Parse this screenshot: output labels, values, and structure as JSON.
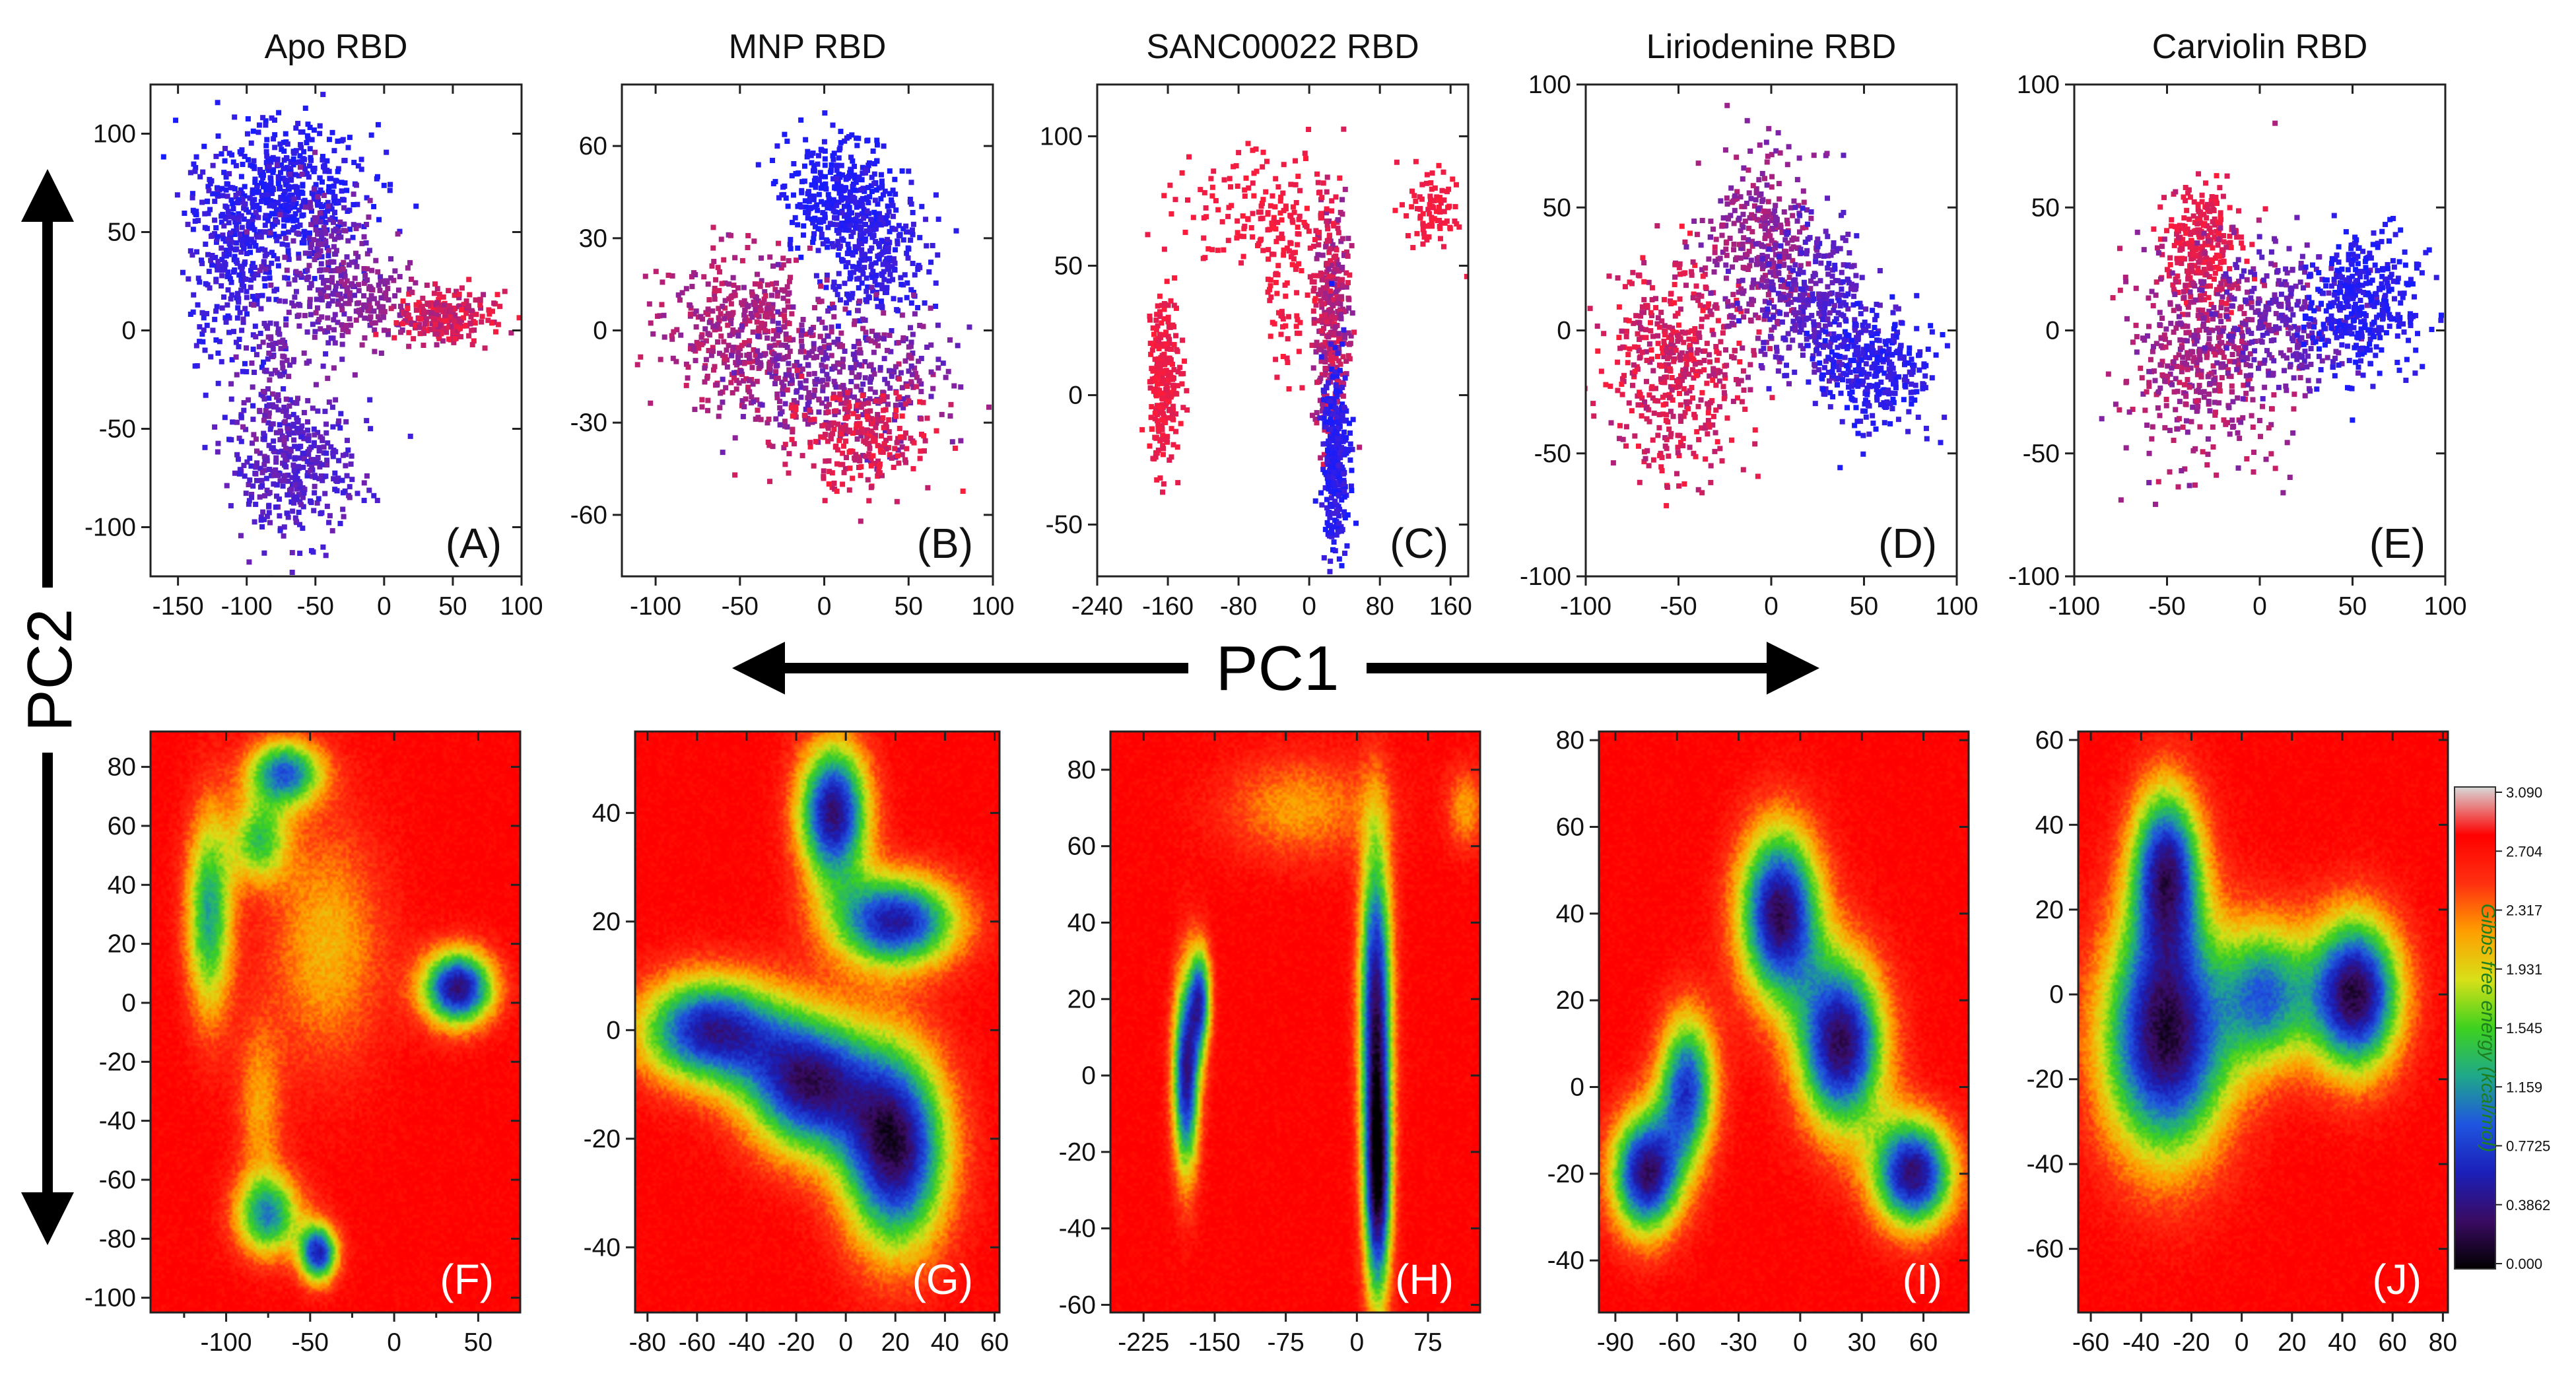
{
  "figure": {
    "pc1_label": "PC1",
    "pc2_label": "PC2"
  },
  "colorbar": {
    "title": "Gibbs free energy (kcal/mol)",
    "ticks": [
      "3.090",
      "2.704",
      "2.317",
      "1.931",
      "1.545",
      "1.159",
      "0.7725",
      "0.3862",
      "0.000"
    ],
    "colors": [
      "#000000",
      "#3a0b63",
      "#1a1fb8",
      "#1f55e0",
      "#1fa88a",
      "#3dd21f",
      "#d8e018",
      "#ff9e00",
      "#ff3010",
      "#ff0000",
      "#d8d8d8"
    ]
  },
  "chart_data": [
    {
      "id": "A",
      "type": "scatter",
      "title": "Apo RBD",
      "panel_label": "(A)",
      "xlim": [
        -170,
        100
      ],
      "ylim": [
        -125,
        125
      ],
      "xticks": [
        -150,
        -100,
        -50,
        0,
        50,
        100
      ],
      "yticks": [
        -100,
        -50,
        0,
        50,
        100
      ],
      "clusters": [
        {
          "x": -75,
          "y": 70,
          "sx": 30,
          "sy": 18,
          "n": 500,
          "c0": 0.0,
          "c1": 0.15
        },
        {
          "x": -110,
          "y": 35,
          "sx": 18,
          "sy": 28,
          "n": 300,
          "c0": 0.05,
          "c1": 0.25
        },
        {
          "x": -40,
          "y": 30,
          "sx": 18,
          "sy": 22,
          "n": 220,
          "c0": 0.3,
          "c1": 0.5
        },
        {
          "x": -10,
          "y": 15,
          "sx": 15,
          "sy": 10,
          "n": 120,
          "c0": 0.45,
          "c1": 0.6
        },
        {
          "x": 45,
          "y": 6,
          "sx": 17,
          "sy": 7,
          "n": 250,
          "c0": 0.6,
          "c1": 1.0
        },
        {
          "x": -65,
          "y": -70,
          "sx": 22,
          "sy": 20,
          "n": 380,
          "c0": 0.15,
          "c1": 0.4
        },
        {
          "x": -80,
          "y": -20,
          "sx": 12,
          "sy": 22,
          "n": 100,
          "c0": 0.3,
          "c1": 0.5
        }
      ]
    },
    {
      "id": "B",
      "type": "scatter",
      "title": "MNP RBD",
      "panel_label": "(B)",
      "xlim": [
        -120,
        100
      ],
      "ylim": [
        -80,
        80
      ],
      "xticks": [
        -100,
        -50,
        0,
        50,
        100
      ],
      "yticks": [
        -60,
        -30,
        0,
        30,
        60
      ],
      "clusters": [
        {
          "x": 8,
          "y": 45,
          "sx": 16,
          "sy": 10,
          "n": 320,
          "c0": 0.0,
          "c1": 0.1
        },
        {
          "x": 30,
          "y": 25,
          "sx": 16,
          "sy": 10,
          "n": 280,
          "c0": 0.05,
          "c1": 0.2
        },
        {
          "x": -50,
          "y": 0,
          "sx": 22,
          "sy": 12,
          "n": 400,
          "c0": 0.5,
          "c1": 0.8
        },
        {
          "x": 10,
          "y": -15,
          "sx": 30,
          "sy": 12,
          "n": 420,
          "c0": 0.3,
          "c1": 0.65
        },
        {
          "x": 20,
          "y": -35,
          "sx": 22,
          "sy": 8,
          "n": 250,
          "c0": 0.7,
          "c1": 1.0
        }
      ]
    },
    {
      "id": "C",
      "type": "scatter",
      "title": "SANC00022 RBD",
      "panel_label": "(C)",
      "xlim": [
        -240,
        180
      ],
      "ylim": [
        -70,
        120
      ],
      "xticks": [
        -240,
        -160,
        -80,
        0,
        80,
        160
      ],
      "yticks": [
        -50,
        0,
        50,
        100
      ],
      "tick_labels_x": [
        "-240",
        "-160",
        "-80",
        "0",
        "80",
        "160"
      ],
      "clusters": [
        {
          "x": -165,
          "y": 5,
          "sx": 9,
          "sy": 16,
          "n": 250,
          "c0": 0.85,
          "c1": 1.0
        },
        {
          "x": 25,
          "y": 30,
          "sx": 10,
          "sy": 22,
          "n": 350,
          "c0": 0.5,
          "c1": 0.9
        },
        {
          "x": 30,
          "y": -25,
          "sx": 8,
          "sy": 18,
          "n": 320,
          "c0": 0.0,
          "c1": 0.2
        },
        {
          "x": -60,
          "y": 70,
          "sx": 45,
          "sy": 12,
          "n": 160,
          "c0": 0.9,
          "c1": 1.0
        },
        {
          "x": 140,
          "y": 70,
          "sx": 15,
          "sy": 8,
          "n": 90,
          "c0": 0.9,
          "c1": 1.0
        },
        {
          "x": -30,
          "y": 40,
          "sx": 15,
          "sy": 15,
          "n": 60,
          "c0": 0.9,
          "c1": 1.0
        }
      ]
    },
    {
      "id": "D",
      "type": "scatter",
      "title": "Liriodenine RBD",
      "panel_label": "(D)",
      "xlim": [
        -100,
        100
      ],
      "ylim": [
        -100,
        100
      ],
      "xticks": [
        -100,
        -50,
        0,
        50,
        100
      ],
      "yticks": [
        -100,
        -50,
        0,
        50,
        100
      ],
      "clusters": [
        {
          "x": -50,
          "y": -15,
          "sx": 18,
          "sy": 22,
          "n": 480,
          "c0": 0.65,
          "c1": 1.0
        },
        {
          "x": -5,
          "y": 35,
          "sx": 14,
          "sy": 18,
          "n": 350,
          "c0": 0.4,
          "c1": 0.7
        },
        {
          "x": 25,
          "y": 10,
          "sx": 16,
          "sy": 16,
          "n": 330,
          "c0": 0.15,
          "c1": 0.4
        },
        {
          "x": 55,
          "y": -15,
          "sx": 16,
          "sy": 12,
          "n": 330,
          "c0": 0.0,
          "c1": 0.2
        }
      ]
    },
    {
      "id": "E",
      "type": "scatter",
      "title": "Carviolin RBD",
      "panel_label": "(E)",
      "xlim": [
        -100,
        100
      ],
      "ylim": [
        -100,
        100
      ],
      "xticks": [
        -100,
        -50,
        0,
        50,
        100
      ],
      "yticks": [
        -100,
        -50,
        0,
        50,
        100
      ],
      "clusters": [
        {
          "x": -30,
          "y": 35,
          "sx": 10,
          "sy": 12,
          "n": 260,
          "c0": 0.8,
          "c1": 1.0
        },
        {
          "x": -30,
          "y": -10,
          "sx": 20,
          "sy": 22,
          "n": 500,
          "c0": 0.45,
          "c1": 0.8
        },
        {
          "x": 15,
          "y": 5,
          "sx": 18,
          "sy": 14,
          "n": 260,
          "c0": 0.25,
          "c1": 0.45
        },
        {
          "x": 55,
          "y": 10,
          "sx": 15,
          "sy": 14,
          "n": 380,
          "c0": 0.0,
          "c1": 0.15
        }
      ]
    },
    {
      "id": "F",
      "type": "heatmap",
      "panel_label": "(F)",
      "xlim": [
        -145,
        75
      ],
      "ylim": [
        -105,
        92
      ],
      "xticks": [
        -100,
        -50,
        0,
        50
      ],
      "yticks": [
        -100,
        -80,
        -60,
        -40,
        -20,
        0,
        20,
        40,
        60,
        80
      ],
      "minor_xticks": [
        -125,
        -75,
        -25,
        25
      ],
      "basins": [
        {
          "x": -65,
          "y": 78,
          "sx": 16,
          "sy": 8,
          "depth": 1.0
        },
        {
          "x": -110,
          "y": 30,
          "sx": 10,
          "sy": 25,
          "depth": 0.85
        },
        {
          "x": -80,
          "y": 55,
          "sx": 12,
          "sy": 10,
          "depth": 0.7
        },
        {
          "x": 38,
          "y": 5,
          "sx": 15,
          "sy": 9,
          "depth": 1.35
        },
        {
          "x": -75,
          "y": -72,
          "sx": 14,
          "sy": 10,
          "depth": 0.9
        },
        {
          "x": -45,
          "y": -85,
          "sx": 8,
          "sy": 7,
          "depth": 1.2
        },
        {
          "x": -40,
          "y": 20,
          "sx": 25,
          "sy": 30,
          "depth": 0.4
        },
        {
          "x": -80,
          "y": -35,
          "sx": 10,
          "sy": 20,
          "depth": 0.35
        }
      ]
    },
    {
      "id": "G",
      "type": "heatmap",
      "panel_label": "(G)",
      "xlim": [
        -85,
        62
      ],
      "ylim": [
        -52,
        55
      ],
      "xticks": [
        -80,
        -60,
        -40,
        -20,
        0,
        20,
        40,
        60
      ],
      "yticks": [
        -40,
        -20,
        0,
        20,
        40
      ],
      "basins": [
        {
          "x": -5,
          "y": 40,
          "sx": 10,
          "sy": 9,
          "depth": 1.35
        },
        {
          "x": 20,
          "y": 20,
          "sx": 18,
          "sy": 6,
          "depth": 1.25
        },
        {
          "x": -55,
          "y": 0,
          "sx": 20,
          "sy": 7,
          "depth": 1.25
        },
        {
          "x": -15,
          "y": -10,
          "sx": 18,
          "sy": 9,
          "depth": 1.3
        },
        {
          "x": 20,
          "y": -22,
          "sx": 15,
          "sy": 13,
          "depth": 1.4
        }
      ]
    },
    {
      "id": "H",
      "type": "heatmap",
      "panel_label": "(H)",
      "xlim": [
        -260,
        130
      ],
      "ylim": [
        -62,
        90
      ],
      "xticks": [
        -225,
        -150,
        -75,
        0,
        75
      ],
      "yticks": [
        -60,
        -40,
        -20,
        0,
        20,
        40,
        60,
        80
      ],
      "basins": [
        {
          "x": -180,
          "y": 0,
          "sx": 10,
          "sy": 18,
          "depth": 1.3
        },
        {
          "x": -165,
          "y": 20,
          "sx": 8,
          "sy": 10,
          "depth": 1.0
        },
        {
          "x": 20,
          "y": 20,
          "sx": 12,
          "sy": 30,
          "depth": 1.3
        },
        {
          "x": 22,
          "y": -30,
          "sx": 10,
          "sy": 22,
          "depth": 1.3
        },
        {
          "x": -60,
          "y": 70,
          "sx": 60,
          "sy": 10,
          "depth": 0.35
        },
        {
          "x": 115,
          "y": 70,
          "sx": 15,
          "sy": 8,
          "depth": 0.35
        }
      ]
    },
    {
      "id": "I",
      "type": "heatmap",
      "panel_label": "(I)",
      "xlim": [
        -98,
        82
      ],
      "ylim": [
        -52,
        82
      ],
      "xticks": [
        -90,
        -60,
        -30,
        0,
        30,
        60
      ],
      "yticks": [
        -40,
        -20,
        0,
        20,
        40,
        60,
        80
      ],
      "basins": [
        {
          "x": -75,
          "y": -20,
          "sx": 12,
          "sy": 10,
          "depth": 1.35
        },
        {
          "x": -55,
          "y": 0,
          "sx": 10,
          "sy": 12,
          "depth": 1.1
        },
        {
          "x": -10,
          "y": 40,
          "sx": 14,
          "sy": 14,
          "depth": 1.4
        },
        {
          "x": 20,
          "y": 10,
          "sx": 15,
          "sy": 14,
          "depth": 1.4
        },
        {
          "x": 55,
          "y": -20,
          "sx": 14,
          "sy": 9,
          "depth": 1.35
        }
      ]
    },
    {
      "id": "J",
      "type": "heatmap",
      "panel_label": "(J)",
      "xlim": [
        -65,
        82
      ],
      "ylim": [
        -75,
        62
      ],
      "xticks": [
        -60,
        -40,
        -20,
        0,
        20,
        40,
        60,
        80
      ],
      "yticks": [
        -60,
        -40,
        -20,
        0,
        20,
        40,
        60
      ],
      "basins": [
        {
          "x": -30,
          "y": 30,
          "sx": 10,
          "sy": 14,
          "depth": 1.2
        },
        {
          "x": -30,
          "y": -10,
          "sx": 18,
          "sy": 20,
          "depth": 1.45
        },
        {
          "x": 10,
          "y": 0,
          "sx": 12,
          "sy": 12,
          "depth": 0.9
        },
        {
          "x": 45,
          "y": 0,
          "sx": 13,
          "sy": 13,
          "depth": 1.45
        }
      ]
    }
  ]
}
